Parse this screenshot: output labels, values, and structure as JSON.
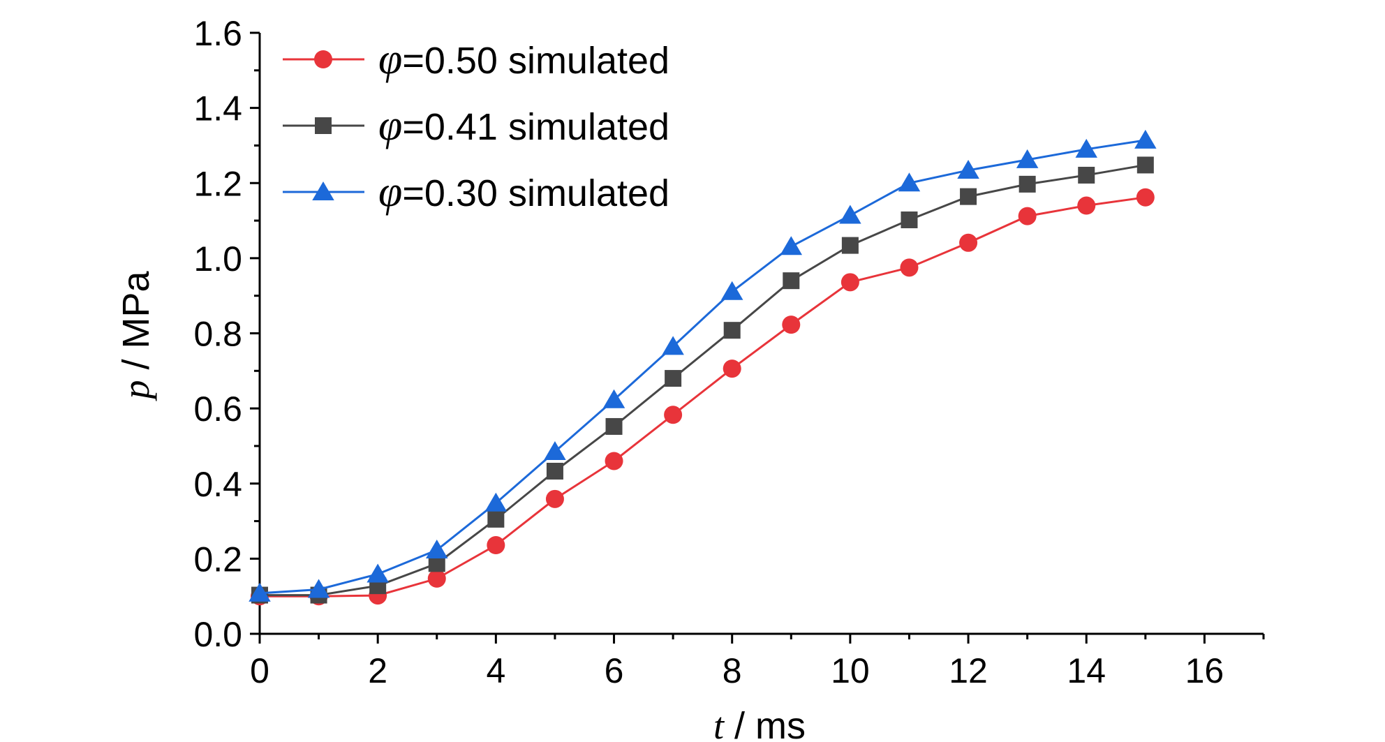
{
  "chart_data": {
    "type": "line",
    "title": "",
    "xlabel": {
      "var": "t",
      "unit": " / ms"
    },
    "ylabel": {
      "var": "p",
      "unit": " / MPa"
    },
    "xlim": [
      0,
      17
    ],
    "ylim": [
      0,
      1.6
    ],
    "xticks": [
      "0",
      "2",
      "4",
      "6",
      "8",
      "10",
      "12",
      "14",
      "16"
    ],
    "yticks": [
      "0.0",
      "0.2",
      "0.4",
      "0.6",
      "0.8",
      "1.0",
      "1.2",
      "1.4",
      "1.6"
    ],
    "x": [
      0,
      1,
      2,
      3,
      4,
      5,
      6,
      7,
      8,
      9,
      10,
      11,
      12,
      13,
      14,
      15
    ],
    "legend_position": "top-left",
    "series": [
      {
        "name": "=0.50 simulated",
        "symbol": "φ",
        "color": "#e8343a",
        "marker": "circle",
        "values": [
          0.1,
          0.1,
          0.102,
          0.147,
          0.236,
          0.359,
          0.46,
          0.583,
          0.706,
          0.823,
          0.936,
          0.975,
          1.041,
          1.112,
          1.14,
          1.162
        ]
      },
      {
        "name": "=0.41 simulated",
        "symbol": "φ",
        "color": "#474747",
        "marker": "square",
        "values": [
          0.103,
          0.103,
          0.128,
          0.187,
          0.305,
          0.433,
          0.552,
          0.68,
          0.808,
          0.94,
          1.034,
          1.102,
          1.164,
          1.197,
          1.221,
          1.248
        ]
      },
      {
        "name": "=0.30 simulated",
        "symbol": "φ",
        "color": "#1c69d9",
        "marker": "triangle",
        "values": [
          0.108,
          0.118,
          0.159,
          0.223,
          0.348,
          0.485,
          0.623,
          0.765,
          0.911,
          1.031,
          1.114,
          1.2,
          1.234,
          1.262,
          1.29,
          1.314
        ]
      }
    ]
  }
}
